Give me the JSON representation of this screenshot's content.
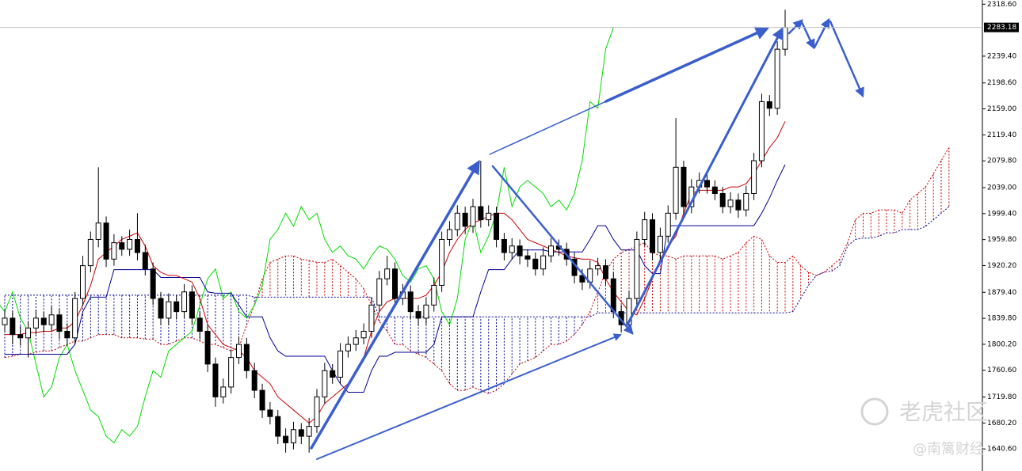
{
  "chart_data": {
    "type": "candlestick",
    "ylim": [
      1607,
      2325
    ],
    "yticks": [
      {
        "value": 2318.6,
        "label": "2318.60"
      },
      {
        "value": 2239.4,
        "label": "2239.40"
      },
      {
        "value": 2198.6,
        "label": "2198.60"
      },
      {
        "value": 2159,
        "label": "2159.00"
      },
      {
        "value": 2119.4,
        "label": "2119.40"
      },
      {
        "value": 2079.8,
        "label": "2079.80"
      },
      {
        "value": 2039,
        "label": "2039.00"
      },
      {
        "value": 1999.4,
        "label": "1999.40"
      },
      {
        "value": 1959.8,
        "label": "1959.80"
      },
      {
        "value": 1920.2,
        "label": "1920.20"
      },
      {
        "value": 1879.4,
        "label": "1879.40"
      },
      {
        "value": 1839.8,
        "label": "1839.80"
      },
      {
        "value": 1800.2,
        "label": "1800.20"
      },
      {
        "value": 1760.6,
        "label": "1760.60"
      },
      {
        "value": 1719.8,
        "label": "1719.80"
      },
      {
        "value": 1680.2,
        "label": "1680.20"
      },
      {
        "value": 1640.6,
        "label": "1640.60"
      }
    ],
    "bull_color": "#ffffff",
    "bear_color": "#000000",
    "open": [
      1830,
      1840,
      1815,
      1810,
      1825,
      1840,
      1830,
      1845,
      1820,
      1810,
      1870,
      1920,
      1960,
      1985,
      1930,
      1955,
      1945,
      1960,
      1940,
      1915,
      1870,
      1840,
      1865,
      1850,
      1880,
      1840,
      1820,
      1770,
      1720,
      1735,
      1780,
      1800,
      1760,
      1730,
      1700,
      1690,
      1660,
      1650,
      1670,
      1660,
      1675,
      1720,
      1760,
      1750,
      1790,
      1800,
      1810,
      1820,
      1860,
      1900,
      1915,
      1870,
      1880,
      1850,
      1840,
      1860,
      1890,
      1960,
      1975,
      2000,
      1980,
      2010,
      1990,
      2000,
      1960,
      1940,
      1950,
      1935,
      1930,
      1915,
      1935,
      1950,
      1945,
      1930,
      1905,
      1895,
      1915,
      1920,
      1900,
      1850,
      1830,
      1870,
      1960,
      1990,
      1940,
      1965,
      2000,
      2070,
      2010,
      2040,
      2050,
      2040,
      2030,
      2010,
      2020,
      2005,
      2030,
      2080,
      2170,
      2160,
      2250
    ],
    "high": [
      1852,
      1850,
      1828,
      1835,
      1852,
      1850,
      1858,
      1855,
      1832,
      1880,
      1935,
      1972,
      2070,
      1995,
      1968,
      1965,
      1975,
      2000,
      1952,
      1925,
      1880,
      1878,
      1875,
      1892,
      1890,
      1850,
      1830,
      1780,
      1748,
      1792,
      1812,
      1810,
      1772,
      1740,
      1712,
      1700,
      1672,
      1682,
      1680,
      1688,
      1732,
      1772,
      1770,
      1802,
      1812,
      1822,
      1832,
      1872,
      1912,
      1935,
      1925,
      1892,
      1890,
      1860,
      1872,
      1902,
      1972,
      1988,
      2012,
      2010,
      2022,
      2080,
      2012,
      2010,
      1970,
      1962,
      1960,
      1945,
      1940,
      1948,
      1962,
      1960,
      1955,
      1940,
      1915,
      1928,
      1932,
      1930,
      1910,
      1860,
      1882,
      1972,
      2002,
      2000,
      1978,
      2012,
      2145,
      2080,
      2052,
      2062,
      2060,
      2050,
      2040,
      2032,
      2030,
      2042,
      2092,
      2182,
      2180,
      2262,
      2310
    ],
    "low": [
      1818,
      1800,
      1798,
      1780,
      1815,
      1818,
      1820,
      1808,
      1798,
      1800,
      1858,
      1910,
      1948,
      1918,
      1920,
      1935,
      1935,
      1928,
      1905,
      1860,
      1830,
      1830,
      1838,
      1840,
      1830,
      1808,
      1758,
      1705,
      1710,
      1725,
      1770,
      1748,
      1718,
      1688,
      1678,
      1648,
      1635,
      1640,
      1648,
      1635,
      1665,
      1710,
      1740,
      1740,
      1780,
      1790,
      1800,
      1810,
      1850,
      1890,
      1858,
      1860,
      1838,
      1828,
      1830,
      1850,
      1880,
      1950,
      1965,
      1968,
      1970,
      1978,
      1980,
      1948,
      1928,
      1930,
      1922,
      1918,
      1905,
      1905,
      1925,
      1935,
      1920,
      1893,
      1883,
      1885,
      1905,
      1890,
      1840,
      1818,
      1820,
      1860,
      1950,
      1928,
      1930,
      1955,
      1990,
      1998,
      2000,
      2030,
      2030,
      2020,
      2000,
      2000,
      1993,
      1995,
      2020,
      2070,
      2148,
      2150,
      2240
    ],
    "close": [
      1840,
      1815,
      1810,
      1825,
      1840,
      1830,
      1845,
      1820,
      1810,
      1870,
      1920,
      1960,
      1985,
      1930,
      1955,
      1945,
      1960,
      1940,
      1915,
      1870,
      1840,
      1865,
      1850,
      1880,
      1840,
      1820,
      1770,
      1720,
      1735,
      1780,
      1800,
      1760,
      1730,
      1700,
      1690,
      1660,
      1650,
      1670,
      1660,
      1675,
      1720,
      1760,
      1750,
      1790,
      1800,
      1810,
      1820,
      1860,
      1900,
      1915,
      1870,
      1880,
      1850,
      1840,
      1860,
      1890,
      1960,
      1975,
      2000,
      1980,
      2010,
      1990,
      2000,
      1960,
      1940,
      1950,
      1935,
      1930,
      1915,
      1935,
      1950,
      1945,
      1930,
      1905,
      1895,
      1915,
      1920,
      1900,
      1850,
      1830,
      1870,
      1960,
      1990,
      1940,
      1965,
      2000,
      2070,
      2010,
      2040,
      2050,
      2040,
      2030,
      2010,
      2020,
      2005,
      2030,
      2080,
      2170,
      2160,
      2250,
      2283.18
    ],
    "chikou_color": "#00dd00",
    "chikou_shift": 22,
    "tenkan": {
      "color": "#cc0000",
      "values": [
        1815,
        1815,
        1815,
        1818,
        1818,
        1820,
        1820,
        1825,
        1825,
        1835,
        1860,
        1890,
        1930,
        1940,
        1950,
        1960,
        1965,
        1970,
        1950,
        1920,
        1910,
        1905,
        1905,
        1900,
        1895,
        1870,
        1830,
        1815,
        1800,
        1795,
        1790,
        1780,
        1760,
        1750,
        1740,
        1720,
        1710,
        1700,
        1690,
        1680,
        1690,
        1710,
        1720,
        1730,
        1740,
        1760,
        1780,
        1820,
        1850,
        1865,
        1870,
        1870,
        1870,
        1870,
        1875,
        1890,
        1910,
        1940,
        1960,
        1975,
        1985,
        1990,
        1995,
        2000,
        2000,
        1990,
        1975,
        1960,
        1955,
        1950,
        1945,
        1940,
        1935,
        1932,
        1930,
        1930,
        1925,
        1900,
        1880,
        1865,
        1850,
        1845,
        1870,
        1900,
        1930,
        1950,
        1965,
        2000,
        2030,
        2035,
        2035,
        2035,
        2035,
        2040,
        2040,
        2045,
        2060,
        2080,
        2100,
        2115,
        2140
      ]
    },
    "kijun": {
      "color": "#000099",
      "values": [
        1785,
        1785,
        1785,
        1785,
        1785,
        1785,
        1785,
        1785,
        1785,
        1800,
        1850,
        1872,
        1872,
        1872,
        1914,
        1914,
        1914,
        1914,
        1914,
        1914,
        1902,
        1902,
        1902,
        1902,
        1902,
        1902,
        1880,
        1878,
        1878,
        1878,
        1860,
        1842,
        1842,
        1842,
        1810,
        1790,
        1782,
        1782,
        1782,
        1782,
        1782,
        1782,
        1760,
        1740,
        1727,
        1727,
        1727,
        1760,
        1782,
        1782,
        1788,
        1788,
        1788,
        1788,
        1788,
        1800,
        1842,
        1842,
        1842,
        1842,
        1842,
        1880,
        1914,
        1914,
        1914,
        1930,
        1944,
        1944,
        1944,
        1944,
        1941,
        1941,
        1941,
        1941,
        1941,
        1960,
        1981,
        1981,
        1960,
        1944,
        1944,
        1944,
        1920,
        1908,
        1908,
        1981,
        1981,
        1981,
        1981,
        1981,
        1981,
        1981,
        1981,
        1981,
        1981,
        1981,
        1981,
        2000,
        2023,
        2050,
        2074
      ]
    },
    "cloud_up_color": "#cc0000",
    "cloud_down_color": "#000099",
    "span_a": [
      1780,
      1782,
      1785,
      1785,
      1788,
      1790,
      1790,
      1795,
      1800,
      1805,
      1805,
      1810,
      1815,
      1815,
      1815,
      1810,
      1810,
      1810,
      1808,
      1808,
      1800,
      1800,
      1805,
      1810,
      1810,
      1805,
      1800,
      1800,
      1795,
      1790,
      1795,
      1830,
      1860,
      1900,
      1925,
      1930,
      1935,
      1935,
      1930,
      1928,
      1925,
      1925,
      1930,
      1920,
      1910,
      1900,
      1885,
      1860,
      1835,
      1820,
      1800,
      1800,
      1790,
      1785,
      1780,
      1770,
      1760,
      1740,
      1730,
      1730,
      1735,
      1730,
      1725,
      1730,
      1740,
      1755,
      1770,
      1775,
      1780,
      1790,
      1800,
      1800,
      1805,
      1815,
      1830,
      1850,
      1880,
      1910,
      1930,
      1940,
      1945,
      1950,
      1955,
      1940,
      1935,
      1935,
      1930,
      1935,
      1935,
      1935,
      1935,
      1935,
      1930,
      1935,
      1940,
      1955,
      1965,
      1960,
      1935,
      1925,
      1925,
      1935,
      1920,
      1910,
      1905,
      1910,
      1920,
      1930,
      1955,
      1990,
      2000,
      2000,
      2005,
      2005,
      2005,
      2000,
      2020,
      2030,
      2040,
      2060,
      2080,
      2100
    ],
    "span_b": [
      1875,
      1875,
      1875,
      1875,
      1875,
      1875,
      1875,
      1875,
      1875,
      1875,
      1875,
      1875,
      1875,
      1875,
      1875,
      1875,
      1875,
      1875,
      1875,
      1875,
      1875,
      1875,
      1875,
      1875,
      1875,
      1875,
      1875,
      1875,
      1875,
      1875,
      1875,
      1875,
      1872,
      1872,
      1872,
      1872,
      1872,
      1872,
      1872,
      1872,
      1872,
      1872,
      1872,
      1872,
      1872,
      1872,
      1872,
      1872,
      1842,
      1842,
      1842,
      1842,
      1842,
      1842,
      1842,
      1842,
      1842,
      1842,
      1842,
      1842,
      1842,
      1842,
      1842,
      1842,
      1842,
      1842,
      1842,
      1842,
      1842,
      1842,
      1842,
      1842,
      1842,
      1842,
      1842,
      1842,
      1848,
      1848,
      1848,
      1848,
      1848,
      1848,
      1848,
      1848,
      1848,
      1848,
      1848,
      1848,
      1848,
      1848,
      1848,
      1848,
      1848,
      1848,
      1848,
      1848,
      1848,
      1848,
      1848,
      1848,
      1848,
      1850,
      1870,
      1890,
      1905,
      1910,
      1912,
      1920,
      1950,
      1960,
      1962,
      1962,
      1965,
      1970,
      1970,
      1975,
      1975,
      1975,
      1980,
      1990,
      2000,
      2010
    ]
  },
  "watermark": {
    "brand": "老虎社区",
    "author": "@南篱财经"
  }
}
